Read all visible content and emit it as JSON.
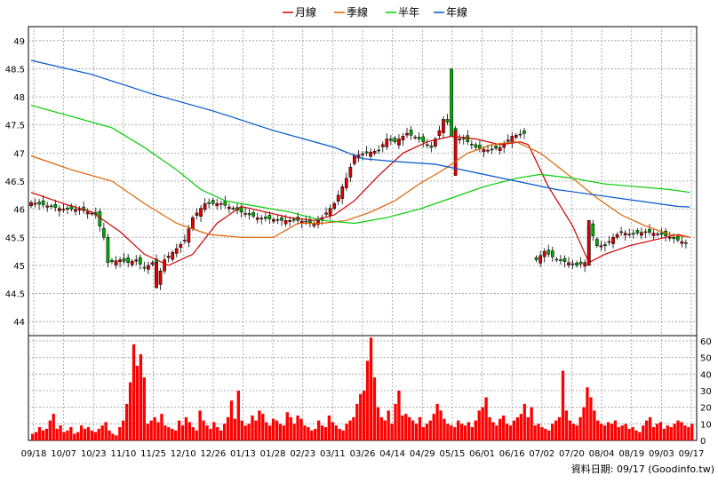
{
  "legend": [
    {
      "name": "月線",
      "color": "#cc0000"
    },
    {
      "name": "季線",
      "color": "#e06000"
    },
    {
      "name": "半年",
      "color": "#00cc00"
    },
    {
      "name": "年線",
      "color": "#0055cc"
    }
  ],
  "footer": "資料日期: 09/17  (Goodinfo.tw)",
  "colors": {
    "up": "#dd0000",
    "down": "#00aa00",
    "volume": "#ff0000",
    "grid": "#999999"
  },
  "chart_data": [
    {
      "type": "candlestick",
      "ylim": [
        43.75,
        49.25
      ],
      "yticks": [
        44,
        44.5,
        45,
        45.5,
        46,
        46.5,
        47,
        47.5,
        48,
        48.5,
        49
      ],
      "grid": true,
      "legend_position": "top-center",
      "x_ticks": [
        "09/18",
        "10/07",
        "10/23",
        "11/10",
        "11/25",
        "12/10",
        "12/26",
        "01/13",
        "01/28",
        "02/23",
        "03/11",
        "03/26",
        "04/14",
        "04/29",
        "05/15",
        "06/01",
        "06/16",
        "07/02",
        "07/20",
        "08/04",
        "08/19",
        "09/03",
        "09/17"
      ],
      "price_path": [
        [
          0,
          46.12
        ],
        [
          8,
          46.0
        ],
        [
          12,
          46.0
        ],
        [
          16,
          45.9
        ],
        [
          18,
          45.5
        ],
        [
          19,
          45.05
        ],
        [
          22,
          45.1
        ],
        [
          24,
          45.05
        ],
        [
          26,
          45.1
        ],
        [
          28,
          44.95
        ],
        [
          30,
          45.05
        ],
        [
          31,
          44.7
        ],
        [
          33,
          45.1
        ],
        [
          36,
          45.3
        ],
        [
          38,
          45.45
        ],
        [
          40,
          45.85
        ],
        [
          43,
          46.1
        ],
        [
          47,
          46.1
        ],
        [
          52,
          45.95
        ],
        [
          56,
          45.85
        ],
        [
          62,
          45.8
        ],
        [
          66,
          45.8
        ],
        [
          70,
          45.75
        ],
        [
          72,
          45.85
        ],
        [
          75,
          46.1
        ],
        [
          78,
          46.55
        ],
        [
          80,
          46.95
        ],
        [
          83,
          47.0
        ],
        [
          86,
          47.05
        ],
        [
          88,
          47.25
        ],
        [
          90,
          47.2
        ],
        [
          93,
          47.35
        ],
        [
          96,
          47.25
        ],
        [
          99,
          47.1
        ],
        [
          101,
          47.4
        ],
        [
          102,
          47.6
        ],
        [
          104,
          47.5
        ],
        [
          105,
          47.25
        ],
        [
          107,
          47.25
        ],
        [
          110,
          47.1
        ],
        [
          113,
          47.05
        ],
        [
          116,
          47.1
        ],
        [
          119,
          47.3
        ],
        [
          122,
          47.35
        ]
      ],
      "price_path2": [
        [
          125,
          45.1
        ],
        [
          127,
          45.25
        ],
        [
          130,
          45.1
        ],
        [
          133,
          45.05
        ],
        [
          135,
          45.0
        ],
        [
          137,
          45.05
        ],
        [
          138,
          45.7
        ],
        [
          140,
          45.35
        ],
        [
          142,
          45.35
        ],
        [
          144,
          45.5
        ],
        [
          146,
          45.6
        ],
        [
          148,
          45.55
        ],
        [
          152,
          45.6
        ],
        [
          156,
          45.55
        ],
        [
          158,
          45.5
        ],
        [
          160,
          45.45
        ],
        [
          162,
          45.4
        ]
      ],
      "spikes": [
        [
          104,
          48.5,
          47.3
        ],
        [
          105,
          46.6,
          47.4
        ],
        [
          31,
          44.6,
          45.05
        ],
        [
          138,
          45.0,
          45.8
        ]
      ],
      "moving_averages": [
        {
          "name": "月線",
          "points": [
            [
              0,
              46.3
            ],
            [
              8,
              46.1
            ],
            [
              15,
              45.95
            ],
            [
              22,
              45.6
            ],
            [
              28,
              45.2
            ],
            [
              34,
              45.0
            ],
            [
              40,
              45.2
            ],
            [
              46,
              45.75
            ],
            [
              52,
              46.05
            ],
            [
              58,
              45.95
            ],
            [
              64,
              45.85
            ],
            [
              70,
              45.8
            ],
            [
              75,
              45.9
            ],
            [
              80,
              46.15
            ],
            [
              86,
              46.6
            ],
            [
              92,
              47.0
            ],
            [
              98,
              47.2
            ],
            [
              104,
              47.3
            ],
            [
              110,
              47.25
            ],
            [
              116,
              47.15
            ],
            [
              121,
              47.2
            ],
            [
              123,
              47.15
            ],
            [
              128,
              46.4
            ],
            [
              134,
              45.7
            ],
            [
              138,
              45.05
            ],
            [
              142,
              45.2
            ],
            [
              148,
              45.35
            ],
            [
              154,
              45.45
            ],
            [
              160,
              45.55
            ],
            [
              163,
              45.5
            ]
          ]
        },
        {
          "name": "季線",
          "points": [
            [
              0,
              46.95
            ],
            [
              10,
              46.7
            ],
            [
              20,
              46.5
            ],
            [
              28,
              46.1
            ],
            [
              36,
              45.75
            ],
            [
              44,
              45.55
            ],
            [
              52,
              45.5
            ],
            [
              60,
              45.5
            ],
            [
              66,
              45.75
            ],
            [
              72,
              45.75
            ],
            [
              78,
              45.8
            ],
            [
              84,
              45.95
            ],
            [
              90,
              46.15
            ],
            [
              96,
              46.45
            ],
            [
              102,
              46.7
            ],
            [
              108,
              47.0
            ],
            [
              114,
              47.15
            ],
            [
              120,
              47.2
            ],
            [
              126,
              47.0
            ],
            [
              134,
              46.55
            ],
            [
              140,
              46.2
            ],
            [
              146,
              45.9
            ],
            [
              152,
              45.7
            ],
            [
              158,
              45.55
            ],
            [
              163,
              45.5
            ]
          ]
        },
        {
          "name": "半年",
          "points": [
            [
              0,
              47.85
            ],
            [
              10,
              47.65
            ],
            [
              20,
              47.45
            ],
            [
              28,
              47.1
            ],
            [
              36,
              46.7
            ],
            [
              42,
              46.35
            ],
            [
              48,
              46.15
            ],
            [
              56,
              46.05
            ],
            [
              64,
              45.95
            ],
            [
              72,
              45.8
            ],
            [
              80,
              45.75
            ],
            [
              88,
              45.85
            ],
            [
              96,
              46.0
            ],
            [
              104,
              46.2
            ],
            [
              112,
              46.4
            ],
            [
              120,
              46.55
            ],
            [
              126,
              46.62
            ],
            [
              134,
              46.55
            ],
            [
              142,
              46.45
            ],
            [
              150,
              46.4
            ],
            [
              158,
              46.35
            ],
            [
              163,
              46.3
            ]
          ]
        },
        {
          "name": "年線",
          "points": [
            [
              0,
              48.65
            ],
            [
              15,
              48.4
            ],
            [
              30,
              48.05
            ],
            [
              45,
              47.75
            ],
            [
              60,
              47.4
            ],
            [
              75,
              47.1
            ],
            [
              82,
              46.9
            ],
            [
              90,
              46.85
            ],
            [
              100,
              46.8
            ],
            [
              110,
              46.65
            ],
            [
              120,
              46.5
            ],
            [
              130,
              46.35
            ],
            [
              140,
              46.25
            ],
            [
              150,
              46.15
            ],
            [
              160,
              46.05
            ],
            [
              163,
              46.04
            ]
          ]
        }
      ]
    },
    {
      "type": "bar",
      "ylim": [
        0,
        60
      ],
      "yticks": [
        0,
        10,
        20,
        30,
        40,
        50,
        60
      ],
      "grid": true,
      "values": [
        4,
        5,
        8,
        6,
        7,
        12,
        16,
        7,
        9,
        5,
        6,
        8,
        4,
        5,
        9,
        7,
        8,
        6,
        5,
        7,
        9,
        11,
        6,
        4,
        3,
        8,
        12,
        22,
        35,
        58,
        45,
        52,
        38,
        10,
        12,
        14,
        11,
        16,
        9,
        8,
        7,
        6,
        12,
        9,
        14,
        11,
        8,
        6,
        18,
        12,
        9,
        7,
        11,
        8,
        6,
        10,
        14,
        24,
        13,
        30,
        12,
        9,
        10,
        15,
        12,
        18,
        16,
        11,
        9,
        13,
        12,
        10,
        9,
        17,
        14,
        10,
        15,
        13,
        9,
        8,
        6,
        7,
        12,
        9,
        8,
        15,
        11,
        9,
        7,
        6,
        10,
        12,
        14,
        22,
        28,
        30,
        48,
        62,
        38,
        20,
        14,
        12,
        18,
        10,
        22,
        30,
        15,
        16,
        14,
        12,
        10,
        14,
        8,
        10,
        12,
        16,
        22,
        18,
        13,
        10,
        9,
        8,
        12,
        10,
        9,
        11,
        8,
        12,
        18,
        20,
        26,
        14,
        11,
        9,
        13,
        15,
        10,
        9,
        12,
        14,
        16,
        22,
        14,
        20,
        9,
        10,
        8,
        7,
        6,
        10,
        12,
        14,
        42,
        18,
        12,
        10,
        9,
        14,
        20,
        32,
        26,
        18,
        12,
        10,
        9,
        11,
        10,
        12,
        8,
        9,
        10,
        7,
        8,
        6,
        5,
        9,
        12,
        14,
        8,
        10,
        11,
        7,
        9,
        8,
        10,
        12,
        11,
        9,
        8,
        10
      ]
    }
  ]
}
